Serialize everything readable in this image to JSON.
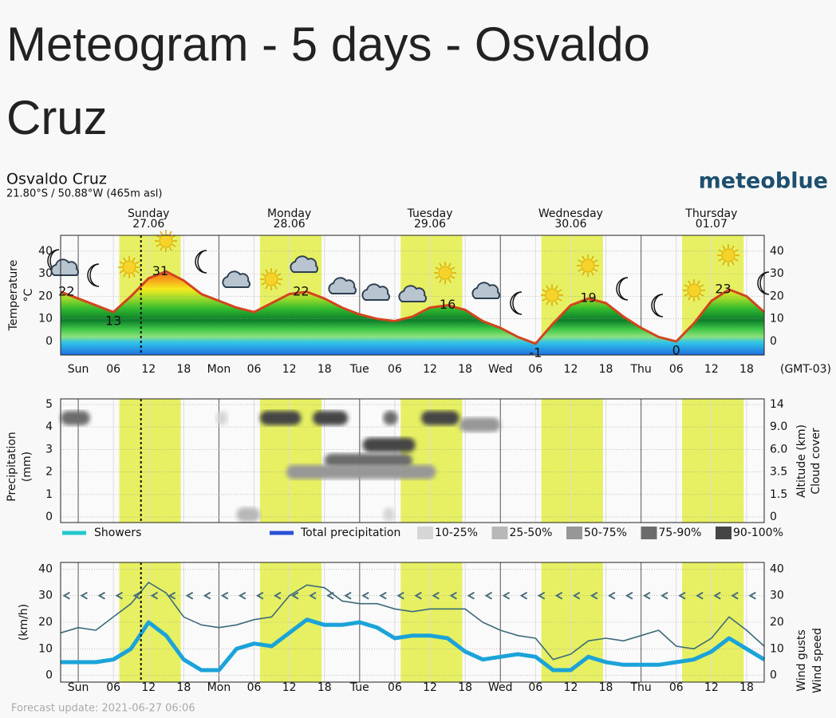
{
  "title_line1": "Meteogram - 5 days - Osvaldo",
  "title_line2": "Cruz",
  "location": "Osvaldo Cruz",
  "coords": "21.80°S / 50.88°W (465m asl)",
  "brand": "meteoblue",
  "timezone": "(GMT-03)",
  "forecast_update": "Forecast update: 2021-06-27 06:06",
  "days": [
    {
      "name": "Sunday",
      "date": "27.06",
      "color": "#d2451e"
    },
    {
      "name": "Monday",
      "date": "28.06",
      "color": "#111111"
    },
    {
      "name": "Tuesday",
      "date": "29.06",
      "color": "#111111"
    },
    {
      "name": "Wednesday",
      "date": "30.06",
      "color": "#111111"
    },
    {
      "name": "Thursday",
      "date": "01.07",
      "color": "#111111"
    }
  ],
  "xlim": [
    -3,
    117
  ],
  "xticks": [
    {
      "value": 0,
      "label": "Sun"
    },
    {
      "value": 6,
      "label": "06"
    },
    {
      "value": 12,
      "label": "12"
    },
    {
      "value": 18,
      "label": "18"
    },
    {
      "value": 24,
      "label": "Mon"
    },
    {
      "value": 30,
      "label": "06"
    },
    {
      "value": 36,
      "label": "12"
    },
    {
      "value": 42,
      "label": "18"
    },
    {
      "value": 48,
      "label": "Tue"
    },
    {
      "value": 54,
      "label": "06"
    },
    {
      "value": 60,
      "label": "12"
    },
    {
      "value": 66,
      "label": "18"
    },
    {
      "value": 72,
      "label": "Wed"
    },
    {
      "value": 78,
      "label": "06"
    },
    {
      "value": 84,
      "label": "12"
    },
    {
      "value": 90,
      "label": "18"
    },
    {
      "value": 96,
      "label": "Thu"
    },
    {
      "value": 102,
      "label": "06"
    },
    {
      "value": 108,
      "label": "12"
    },
    {
      "value": 114,
      "label": "18"
    }
  ],
  "x": [
    -3,
    0,
    3,
    6,
    9,
    12,
    15,
    18,
    21,
    24,
    27,
    30,
    33,
    36,
    39,
    42,
    45,
    48,
    51,
    54,
    57,
    60,
    63,
    66,
    69,
    72,
    75,
    78,
    81,
    84,
    87,
    90,
    93,
    96,
    99,
    102,
    105,
    108,
    111,
    114,
    117
  ],
  "sunrise_hour": 7,
  "sunset_hour": 17.5,
  "now_hour": 10.7,
  "temperature": {
    "axis_label": "Temperature",
    "unit": "°C",
    "ylim": [
      -6,
      47
    ],
    "yticks": [
      0,
      10,
      20,
      30,
      40
    ],
    "color": "#d2451e",
    "values": [
      22,
      19,
      16,
      13,
      20,
      28,
      31,
      27,
      21,
      18,
      15,
      13,
      17,
      21,
      22,
      19,
      15,
      12,
      10,
      9,
      11,
      15,
      16,
      14,
      9,
      6,
      2,
      -1,
      8,
      16,
      19,
      17,
      11,
      6,
      2,
      0,
      8,
      18,
      23,
      20,
      13
    ],
    "annotations": [
      {
        "hour": -2,
        "value": 22,
        "color": "#111111"
      },
      {
        "hour": 6,
        "value": 13,
        "color": "#1a1aa0"
      },
      {
        "hour": 14,
        "value": 31,
        "color": "#111111"
      },
      {
        "hour": 38,
        "value": 22,
        "color": "#111111"
      },
      {
        "hour": 63,
        "value": 16,
        "color": "#111111"
      },
      {
        "hour": 78,
        "value": -1,
        "color": "#1a1aa0"
      },
      {
        "hour": 87,
        "value": 19,
        "color": "#111111"
      },
      {
        "hour": 102,
        "value": 0,
        "color": "#1a1aa0"
      },
      {
        "hour": 110,
        "value": 23,
        "color": "#111111"
      }
    ]
  },
  "precipitation": {
    "axis_label": "Precipitation",
    "unit": "(mm)",
    "ylim": [
      -0.25,
      5.25
    ],
    "yticks": [
      0,
      1,
      2,
      3,
      4,
      5
    ],
    "y2_label": "Altitude (km)",
    "y2_label2": "Cloud cover",
    "y2ticks": [
      0,
      {
        "value": 1.5,
        "label": "1.5"
      },
      {
        "value": 3.5,
        "label": "3.5"
      },
      {
        "value": 6,
        "label": "6.0"
      },
      {
        "value": 9,
        "label": "9.0"
      },
      14
    ],
    "showers": {
      "label": "Showers",
      "color": "#22c8cc"
    },
    "total": {
      "label": "Total precipitation",
      "color": "#2a4fd6"
    },
    "cloud_cover": [
      {
        "label": "10-25%",
        "color": "#d6d6d6"
      },
      {
        "label": "25-50%",
        "color": "#b8b8b8"
      },
      {
        "label": "50-75%",
        "color": "#979797"
      },
      {
        "label": "75-90%",
        "color": "#6c6c6c"
      },
      {
        "label": "90-100%",
        "color": "#454545"
      }
    ],
    "clouds": [
      {
        "hours": [
          -3,
          2
        ],
        "row": 4.4,
        "cover": 3
      },
      {
        "hours": [
          23.5,
          25.5
        ],
        "row": 4.4,
        "cover": 0
      },
      {
        "hours": [
          31,
          38
        ],
        "row": 4.4,
        "cover": 4
      },
      {
        "hours": [
          40,
          46
        ],
        "row": 4.4,
        "cover": 4
      },
      {
        "hours": [
          52,
          54.5
        ],
        "row": 4.4,
        "cover": 3
      },
      {
        "hours": [
          58.5,
          65
        ],
        "row": 4.4,
        "cover": 4
      },
      {
        "hours": [
          65,
          72
        ],
        "row": 4.1,
        "cover": 2
      },
      {
        "hours": [
          48.5,
          57.5
        ],
        "row": 3.2,
        "cover": 4
      },
      {
        "hours": [
          42,
          57
        ],
        "row": 2.5,
        "cover": 3
      },
      {
        "hours": [
          35.5,
          61
        ],
        "row": 2,
        "cover": 2
      },
      {
        "hours": [
          27,
          31
        ],
        "row": 0.1,
        "cover": 1
      },
      {
        "hours": [
          52,
          54
        ],
        "row": 0.1,
        "cover": 0
      }
    ]
  },
  "wind": {
    "axis_label": "(km/h)",
    "ylim": [
      -2.5,
      42.5
    ],
    "yticks": [
      0,
      10,
      20,
      30,
      40
    ],
    "series": [
      {
        "name": "Wind gusts",
        "color": "#3d6b7a",
        "width": 1.6,
        "values": [
          16,
          18,
          17,
          22,
          27,
          35,
          31,
          22,
          19,
          18,
          19,
          21,
          22,
          30,
          34,
          33,
          28,
          27,
          27,
          25,
          24,
          25,
          25,
          25,
          20,
          17,
          15,
          14,
          6,
          8,
          13,
          14,
          13,
          15,
          17,
          11,
          10,
          14,
          22,
          17,
          11
        ]
      },
      {
        "name": "Wind speed",
        "color": "#1ba3d9",
        "width": 5,
        "values": [
          5,
          5,
          5,
          6,
          10,
          20,
          15,
          6,
          2,
          2,
          10,
          12,
          11,
          16,
          21,
          19,
          19,
          20,
          18,
          14,
          15,
          15,
          14,
          9,
          6,
          7,
          8,
          7,
          2,
          2,
          7,
          5,
          4,
          4,
          4,
          5,
          6,
          9,
          14,
          10,
          6
        ]
      }
    ]
  }
}
